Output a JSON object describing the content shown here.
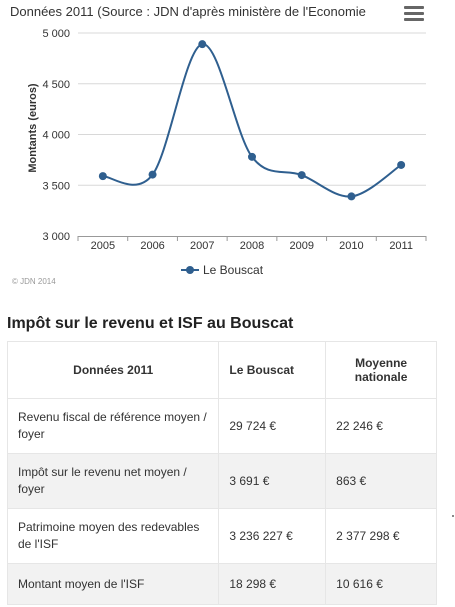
{
  "chart": {
    "title": "Données 2011 (Source : JDN d'après ministère de l'Economie",
    "menu_icon": "hamburger-menu-icon",
    "credits": "© JDN 2014"
  },
  "chart_data": {
    "type": "line",
    "x": [
      "2005",
      "2006",
      "2007",
      "2008",
      "2009",
      "2010",
      "2011"
    ],
    "series": [
      {
        "name": "Le Bouscat",
        "values": [
          3590,
          3605,
          4890,
          3780,
          3600,
          3390,
          3700
        ],
        "color": "#2f5f8f"
      }
    ],
    "ylabel": "Montants (euros)",
    "ylim": [
      3000,
      5000
    ],
    "yticks": [
      "3 000",
      "3 500",
      "4 000",
      "4 500",
      "5 000"
    ],
    "ytick_values": [
      3000,
      3500,
      4000,
      4500,
      5000
    ],
    "grid": true,
    "legend": "bottom-center",
    "smooth": true
  },
  "section": {
    "title": "Impôt sur le revenu et ISF au Bouscat"
  },
  "table": {
    "headers": [
      "Données 2011",
      "Le Bouscat",
      "Moyenne nationale"
    ],
    "rows": [
      [
        "Revenu fiscal de référence moyen / foyer",
        "29 724 €",
        "22 246 €"
      ],
      [
        "Impôt sur le revenu net moyen / foyer",
        "3 691 €",
        "863 €"
      ],
      [
        "Patrimoine moyen des redevables de l'ISF",
        "3 236 227 €",
        "2 377 298 €"
      ],
      [
        "Montant moyen de l'ISF",
        "18 298 €",
        "10 616 €"
      ]
    ]
  }
}
